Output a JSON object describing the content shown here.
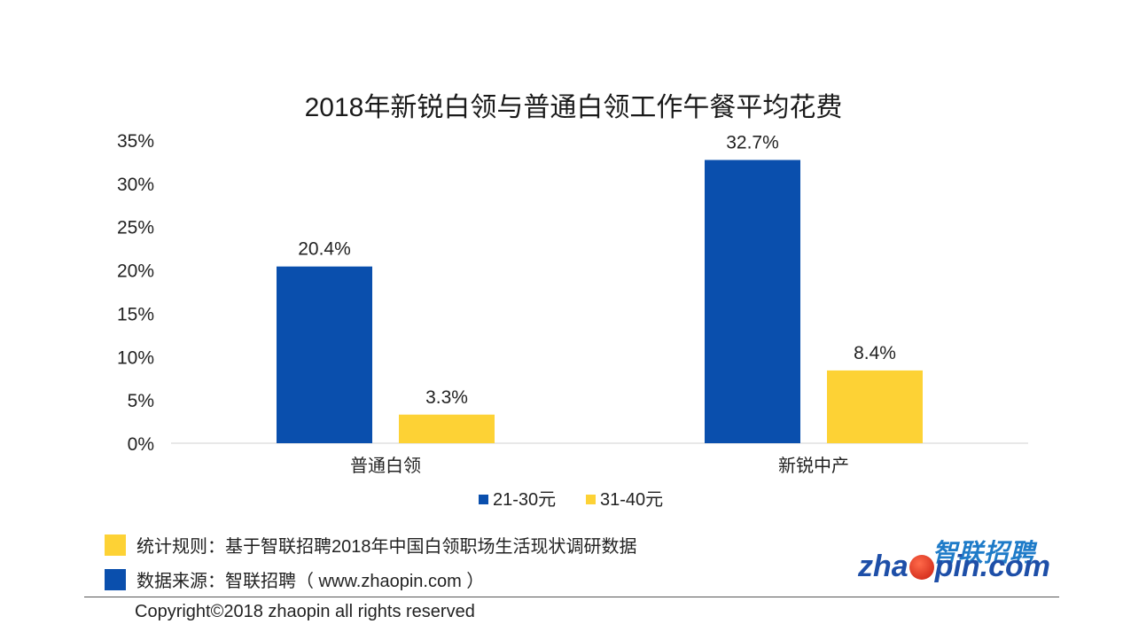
{
  "chart_data": {
    "type": "bar",
    "title": "2018年新锐白领与普通白领工作午餐平均花费",
    "categories": [
      "普通白领",
      "新锐中产"
    ],
    "series": [
      {
        "name": "21-30元",
        "values": [
          20.4,
          32.7
        ],
        "labels": [
          "20.4%",
          "32.7%"
        ],
        "color": "#0a4fad"
      },
      {
        "name": "31-40元",
        "values": [
          3.3,
          8.4
        ],
        "labels": [
          "3.3%",
          "8.4%"
        ],
        "color": "#fdd235"
      }
    ],
    "ylim": [
      0,
      35
    ],
    "yticks": [
      "0%",
      "5%",
      "10%",
      "15%",
      "20%",
      "25%",
      "30%",
      "35%"
    ],
    "grid": false,
    "legend": "bottom"
  },
  "footnotes": {
    "rule": {
      "text": "统计规则：基于智联招聘2018年中国白领职场生活现状调研数据",
      "color": "#fdd235"
    },
    "source": {
      "text": "数据来源：智联招聘（ www.zhaopin.com ）",
      "color": "#0a4fad"
    }
  },
  "logo": {
    "cn": "智联招聘",
    "en_left": "zha",
    "en_right": "pin.com"
  },
  "copyright": "Copyright©2018 zhaopin all rights reserved"
}
